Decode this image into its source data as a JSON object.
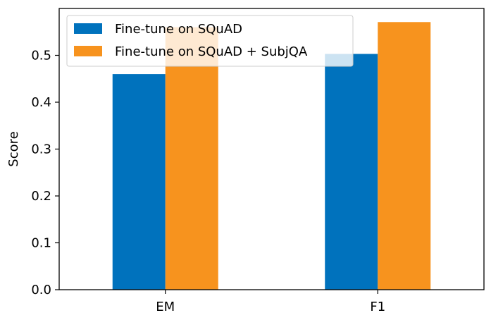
{
  "chart_data": {
    "type": "bar",
    "categories": [
      "EM",
      "F1"
    ],
    "series": [
      {
        "name": "Fine-tune on SQuAD",
        "values": [
          0.46,
          0.503
        ]
      },
      {
        "name": "Fine-tune on SQuAD + SubjQA",
        "values": [
          0.56,
          0.571
        ]
      }
    ],
    "colors": [
      "#0072bd",
      "#f7931e"
    ],
    "xlabel": "",
    "ylabel": "Score",
    "ylim": [
      0,
      0.6
    ],
    "yticks": [
      "0.0",
      "0.1",
      "0.2",
      "0.3",
      "0.4",
      "0.5"
    ],
    "grid": false,
    "legend_position": "top-left"
  }
}
